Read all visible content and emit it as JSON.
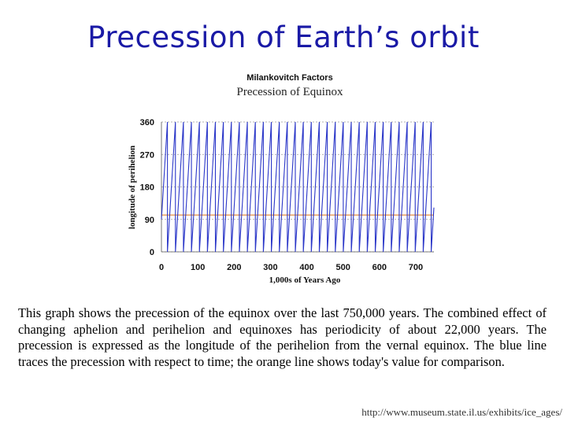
{
  "slide": {
    "title": "Precession of Earth’s orbit",
    "caption": "This graph shows the precession of the equinox over the last 750,000 years. The combined effect of changing aphelion and perihelion and equinoxes has periodicity of about 22,000 years. The precession is expressed as the longitude of the perihelion from the vernal equinox. The blue line traces the precession with respect to time; the orange line shows today's value for comparison.",
    "source_url": "http://www.museum.state.il.us/exhibits/ice_ages/"
  },
  "chart_data": {
    "type": "line",
    "supertitle": "Milankovitch Factors",
    "title": "Precession of Equinox",
    "xlabel": "1,000s of Years Ago",
    "ylabel": "longitude of perihelion",
    "xlim": [
      0,
      750
    ],
    "ylim": [
      0,
      360
    ],
    "xticks": [
      0,
      100,
      200,
      300,
      400,
      500,
      600,
      700
    ],
    "yticks": [
      0,
      90,
      180,
      270,
      360
    ],
    "period_kyr": 22,
    "series": [
      {
        "name": "precession",
        "color": "#2a36c8",
        "description": "sawtooth cycling 0-360 degrees",
        "x": [
          0,
          22,
          44,
          66,
          88,
          110,
          132,
          154,
          176,
          198,
          220,
          242,
          264,
          286,
          308,
          330,
          352,
          374,
          396,
          418,
          440,
          462,
          484,
          506,
          528,
          550,
          572,
          594,
          616,
          638,
          660,
          682,
          704,
          726,
          748
        ],
        "phase_start_deg": 90
      },
      {
        "name": "today",
        "color": "#e8a060",
        "value": 102
      }
    ]
  }
}
